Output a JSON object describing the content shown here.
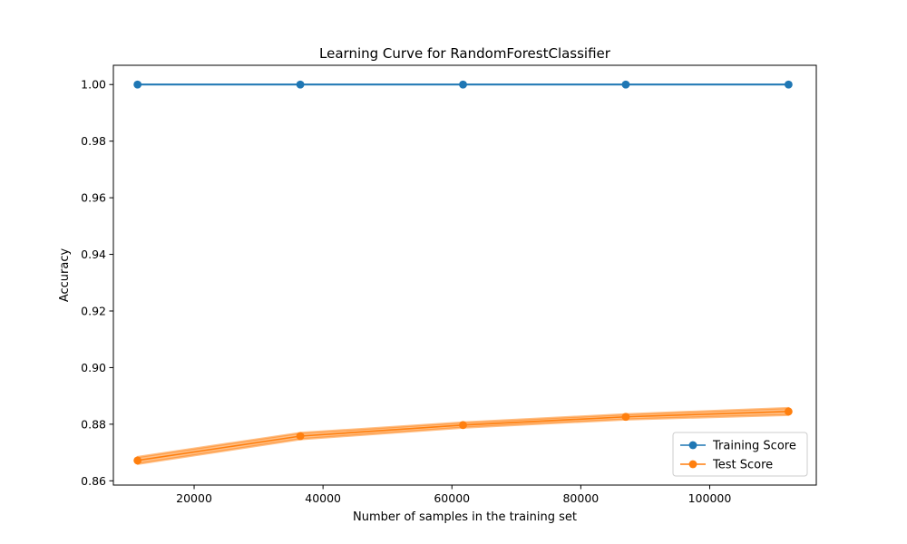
{
  "chart_data": {
    "type": "line",
    "title": "Learning Curve for RandomForestClassifier",
    "xlabel": "Number of samples in the training set",
    "ylabel": "Accuracy",
    "xlim": [
      7470,
      116540
    ],
    "ylim": [
      0.8585,
      1.0068
    ],
    "x_ticks": [
      20000,
      40000,
      60000,
      80000,
      100000
    ],
    "y_ticks": [
      0.86,
      0.88,
      0.9,
      0.92,
      0.94,
      0.96,
      0.98,
      1.0
    ],
    "y_tick_labels": [
      "0.86",
      "0.88",
      "0.90",
      "0.92",
      "0.94",
      "0.96",
      "0.98",
      "1.00"
    ],
    "x": [
      11223,
      36475,
      61727,
      86979,
      112231
    ],
    "series": [
      {
        "name": "Training Score",
        "color": "#1f77b4",
        "values": [
          1.0,
          1.0,
          1.0,
          1.0,
          1.0
        ],
        "band": [
          0.0,
          0.0,
          0.0,
          0.0,
          0.0
        ]
      },
      {
        "name": "Test Score",
        "color": "#ff7f0e",
        "values": [
          0.8672,
          0.8758,
          0.8797,
          0.8826,
          0.8845
        ],
        "band": [
          0.0012,
          0.0011,
          0.0009,
          0.0009,
          0.0012
        ]
      }
    ],
    "legend": "lower-right",
    "grid": false
  }
}
